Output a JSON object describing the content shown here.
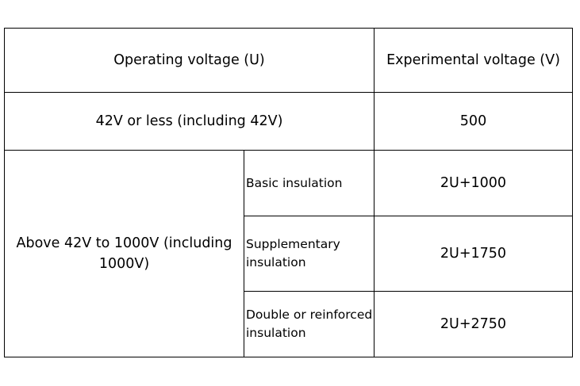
{
  "table": {
    "header": {
      "operating": "Operating voltage (U)",
      "experimental": "Experimental voltage (V)"
    },
    "row_low": {
      "operating": "42V or less (including 42V)",
      "experimental": "500"
    },
    "group_high": {
      "operating": "Above 42V to 1000V (including 1000V)",
      "rows": [
        {
          "insulation": "Basic insulation",
          "experimental": "2U+1000"
        },
        {
          "insulation": "Supplementary insulation",
          "experimental": "2U+1750"
        },
        {
          "insulation": "Double or reinforced insulation",
          "experimental": "2U+2750"
        }
      ]
    }
  }
}
